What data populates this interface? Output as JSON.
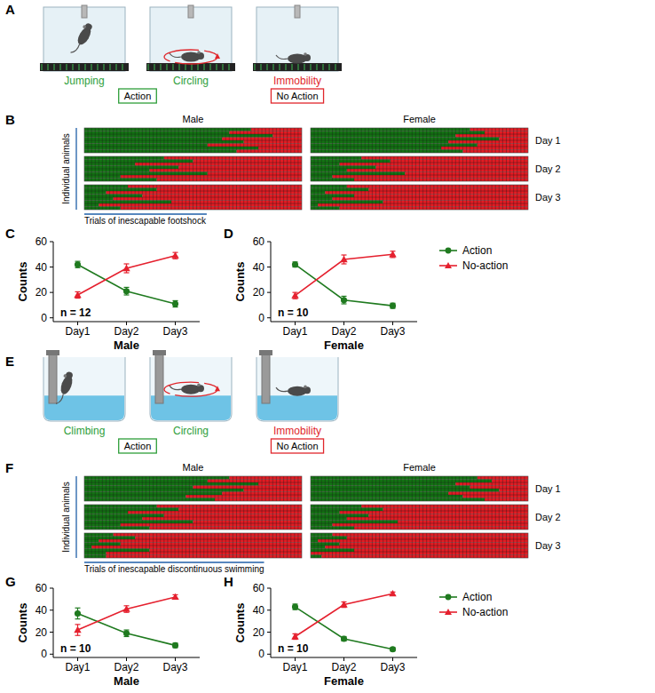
{
  "diagrams": [
    {
      "panel_label": "A",
      "items": [
        {
          "label": "Jumping",
          "group": 0
        },
        {
          "label": "Circling",
          "group": 0
        },
        {
          "label": "Immobility",
          "group": 1
        }
      ],
      "groups": [
        {
          "label": "Action",
          "color": "#2e9e3a"
        },
        {
          "label": "No Action",
          "color": "#e0262b"
        }
      ]
    },
    {
      "panel_label": "E",
      "items": [
        {
          "label": "Climbing",
          "group": 0
        },
        {
          "label": "Circling",
          "group": 0
        },
        {
          "label": "Immobility",
          "group": 1
        }
      ],
      "groups": [
        {
          "label": "Action",
          "color": "#2e9e3a"
        },
        {
          "label": "No Action",
          "color": "#e0262b"
        }
      ]
    }
  ],
  "chart_data": [
    {
      "type": "heatmap",
      "panel_label": "B",
      "y_label": "Individual animals",
      "x_label": "Trials of inescapable footshock",
      "trials": 60,
      "rows": [
        "Day 1",
        "Day 2",
        "Day 3"
      ],
      "colors": [
        "#137313",
        "#e31b23"
      ],
      "series": [
        {
          "name": "Male",
          "action_trials": [
            [
              46,
              40,
              52,
              38,
              44,
              34,
              48,
              42
            ],
            [
              22,
              30,
              14,
              26,
              18,
              34,
              10,
              20
            ],
            [
              12,
              20,
              6,
              16,
              8,
              24,
              4,
              10
            ]
          ]
        },
        {
          "name": "Female",
          "action_trials": [
            [
              44,
              48,
              40,
              52,
              38,
              46,
              36,
              42
            ],
            [
              14,
              22,
              8,
              18,
              10,
              26,
              6,
              12
            ],
            [
              10,
              16,
              4,
              12,
              6,
              20,
              2,
              8
            ]
          ]
        }
      ]
    },
    {
      "type": "line",
      "panel_label": "C",
      "x_label": "Male",
      "y_label": "Counts",
      "annotation": "n = 12",
      "categories": [
        "Day1",
        "Day2",
        "Day3"
      ],
      "ylim": [
        -3,
        60
      ],
      "yticks": [
        0,
        20,
        40,
        60
      ],
      "grid": false,
      "series": [
        {
          "color": "#1f7a1f",
          "marker": "circle",
          "values": [
            42,
            21,
            11
          ],
          "errors": [
            2.5,
            3,
            2.5
          ]
        },
        {
          "color": "#e5202e",
          "marker": "triangle",
          "values": [
            18,
            39,
            49
          ],
          "errors": [
            2.5,
            3.5,
            2.5
          ]
        }
      ]
    },
    {
      "type": "line",
      "panel_label": "D",
      "x_label": "Female",
      "y_label": "Counts",
      "annotation": "n = 10",
      "categories": [
        "Day1",
        "Day2",
        "Day3"
      ],
      "ylim": [
        -3,
        60
      ],
      "yticks": [
        0,
        20,
        40,
        60
      ],
      "grid": false,
      "legend": "right",
      "series": [
        {
          "name": "Action",
          "color": "#1f7a1f",
          "marker": "circle",
          "values": [
            42,
            14,
            9.5
          ],
          "errors": [
            2,
            3,
            2
          ]
        },
        {
          "name": "No-action",
          "color": "#e5202e",
          "marker": "triangle",
          "values": [
            17.5,
            46,
            50
          ],
          "errors": [
            2.5,
            3.5,
            2.5
          ]
        }
      ]
    },
    {
      "type": "heatmap",
      "panel_label": "F",
      "y_label": "Individual animals",
      "x_label": "Trials of inescapable discontinuous swimming",
      "trials": 60,
      "rows": [
        "Day 1",
        "Day 2",
        "Day 3"
      ],
      "colors": [
        "#137313",
        "#e31b23"
      ],
      "series": [
        {
          "name": "Male",
          "action_trials": [
            [
              40,
              34,
              48,
              30,
              44,
              38,
              28,
              36
            ],
            [
              20,
              26,
              12,
              22,
              16,
              30,
              10,
              18
            ],
            [
              8,
              14,
              4,
              10,
              2,
              18,
              6,
              6
            ]
          ]
        },
        {
          "name": "Female",
          "action_trials": [
            [
              46,
              50,
              40,
              44,
              52,
              38,
              42,
              48
            ],
            [
              14,
              20,
              8,
              16,
              10,
              24,
              6,
              12
            ],
            [
              6,
              10,
              2,
              8,
              4,
              12,
              0,
              3
            ]
          ]
        }
      ]
    },
    {
      "type": "line",
      "panel_label": "G",
      "x_label": "Male",
      "y_label": "Counts",
      "annotation": "n = 10",
      "categories": [
        "Day1",
        "Day2",
        "Day3"
      ],
      "ylim": [
        -3,
        60
      ],
      "yticks": [
        0,
        20,
        40,
        60
      ],
      "grid": false,
      "series": [
        {
          "color": "#1f7a1f",
          "marker": "circle",
          "values": [
            37,
            19,
            8
          ],
          "errors": [
            5,
            3,
            2
          ]
        },
        {
          "color": "#e5202e",
          "marker": "triangle",
          "values": [
            22,
            41,
            52
          ],
          "errors": [
            5,
            3,
            2
          ]
        }
      ]
    },
    {
      "type": "line",
      "panel_label": "H",
      "x_label": "Female",
      "y_label": "Counts",
      "annotation": "n = 10",
      "categories": [
        "Day1",
        "Day2",
        "Day3"
      ],
      "ylim": [
        -3,
        60
      ],
      "yticks": [
        0,
        20,
        40,
        60
      ],
      "grid": false,
      "legend": "right",
      "series": [
        {
          "name": "Action",
          "color": "#1f7a1f",
          "marker": "circle",
          "values": [
            43,
            14,
            4.5
          ],
          "errors": [
            2.5,
            2,
            1.5
          ]
        },
        {
          "name": "No-action",
          "color": "#e5202e",
          "marker": "triangle",
          "values": [
            16,
            45,
            55
          ],
          "errors": [
            2.5,
            2.5,
            1.5
          ]
        }
      ]
    }
  ]
}
